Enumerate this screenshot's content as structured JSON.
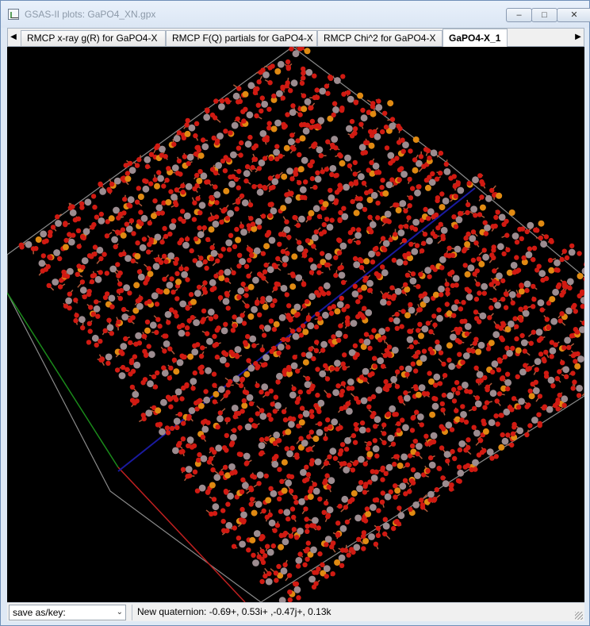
{
  "window": {
    "title": "GSAS-II plots: GaPO4_XN.gpx",
    "controls": {
      "minimize": "–",
      "maximize": "□",
      "close": "✕"
    }
  },
  "tabs": {
    "scroll_left": "◀",
    "scroll_right": "▶",
    "items": [
      {
        "label": "RMCP x-ray g(R) for GaPO4-X",
        "active": false
      },
      {
        "label": "RMCP F(Q) partials for GaPO4-X",
        "active": false
      },
      {
        "label": "RMCP Chi^2 for GaPO4-X",
        "active": false
      },
      {
        "label": "GaPO4-X_1",
        "active": true
      }
    ]
  },
  "structure_view": {
    "colors": {
      "background": "#000000",
      "oxygen": "#d11a12",
      "phosphorus": "#e08a12",
      "gallium": "#9c8c90",
      "bond": "#b05a3a",
      "cell_edge": "#8a8a8a",
      "axis_a": "#c02020",
      "axis_b": "#1a8a1a",
      "axis_c": "#1a1aa0"
    }
  },
  "statusbar": {
    "save_select": {
      "value": "save as/key:",
      "chevron": "⌄"
    },
    "message": "New quaternion: -0.69+, 0.53i+ ,-0.47j+, 0.13k"
  }
}
